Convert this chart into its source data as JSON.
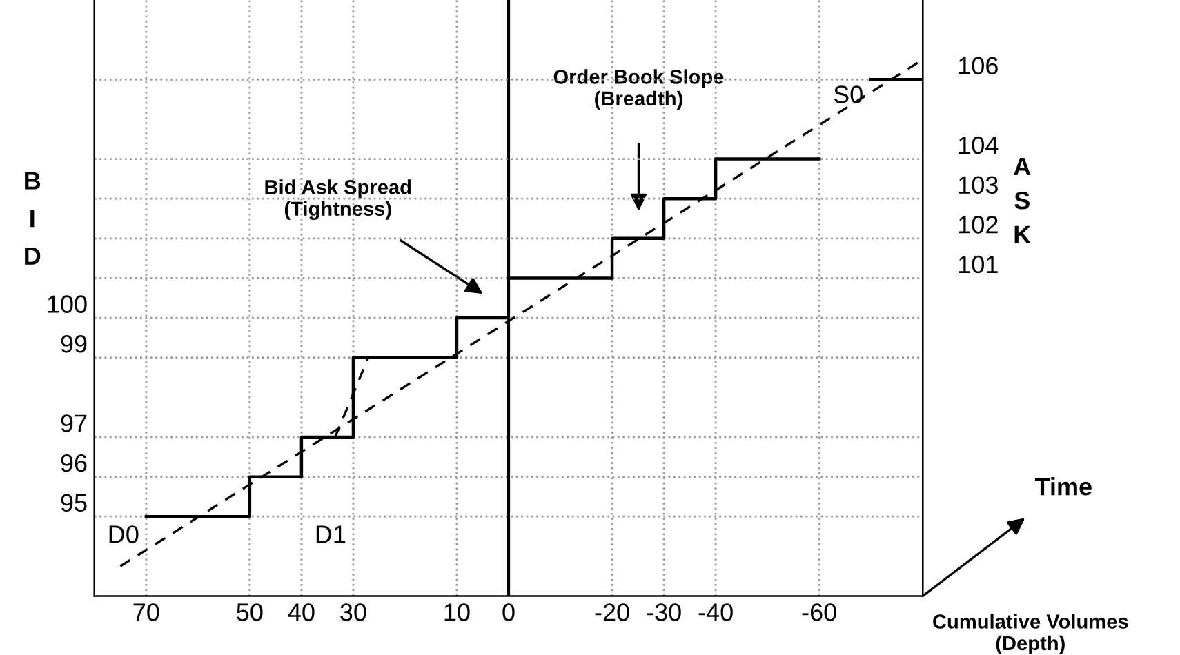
{
  "chart_data": {
    "type": "step",
    "xlabel": "Cumulative Volumes\n(Depth)",
    "ylabel": "BID",
    "y2label": "ASK",
    "xlim": [
      80,
      -80
    ],
    "xticks": [
      70,
      50,
      40,
      30,
      10,
      0,
      -20,
      -30,
      -40,
      -60
    ],
    "ylim": [
      93,
      108
    ],
    "yticks": [
      95,
      96,
      97,
      99,
      100
    ],
    "y2lim": [
      93,
      108
    ],
    "y2ticks": [
      101,
      102,
      103,
      104,
      106
    ],
    "grid": true,
    "ref_lines": [
      {
        "axis": "x",
        "value": 0,
        "color": "#000000"
      }
    ],
    "series": [
      {
        "color": "#000000",
        "x": [
          70,
          50,
          40,
          30,
          10,
          0
        ],
        "values": [
          95,
          96,
          97,
          99,
          100,
          100
        ]
      },
      {
        "color": "#000000",
        "x": [
          0,
          -20,
          -30,
          -40,
          -60,
          -70,
          -80
        ],
        "values": [
          101,
          102,
          103,
          104,
          null,
          106,
          106
        ],
        "axis": "y2"
      },
      {
        "type": "line",
        "color": "#000000",
        "line_style": "dashed",
        "x": [
          75,
          -79.5
        ],
        "values": [
          93.75,
          106.46
        ]
      },
      {
        "type": "line",
        "color": "#000000",
        "line_style": "dashed",
        "x": [
          33.5,
          27.1
        ],
        "values": [
          97,
          99
        ]
      }
    ],
    "annotations": [
      "Bid Ask Spread\n(Tightness)",
      "Order Book Slope\n(Breadth)",
      "S0",
      "D0",
      "D1",
      "Time"
    ]
  }
}
